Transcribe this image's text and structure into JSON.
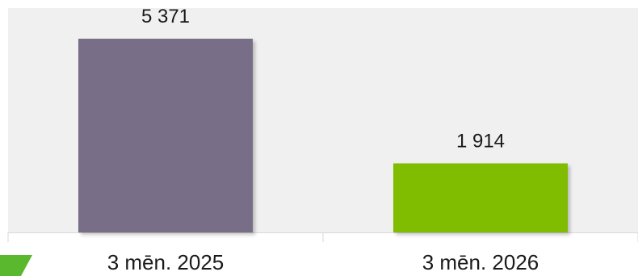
{
  "chart_data": {
    "type": "bar",
    "title": "",
    "xlabel": "",
    "ylabel": "",
    "categories": [
      "3 mēn. 2025",
      "3 mēn. 2026"
    ],
    "values": [
      5371,
      1914
    ],
    "value_labels": [
      "5 371",
      "1 914"
    ],
    "bar_colors": [
      "#786e88",
      "#80bd00"
    ],
    "ylim": [
      0,
      6220
    ],
    "grid": false,
    "legend": "none",
    "plot_background": "#f0f0f0",
    "decoration_color": "#59b82e"
  }
}
